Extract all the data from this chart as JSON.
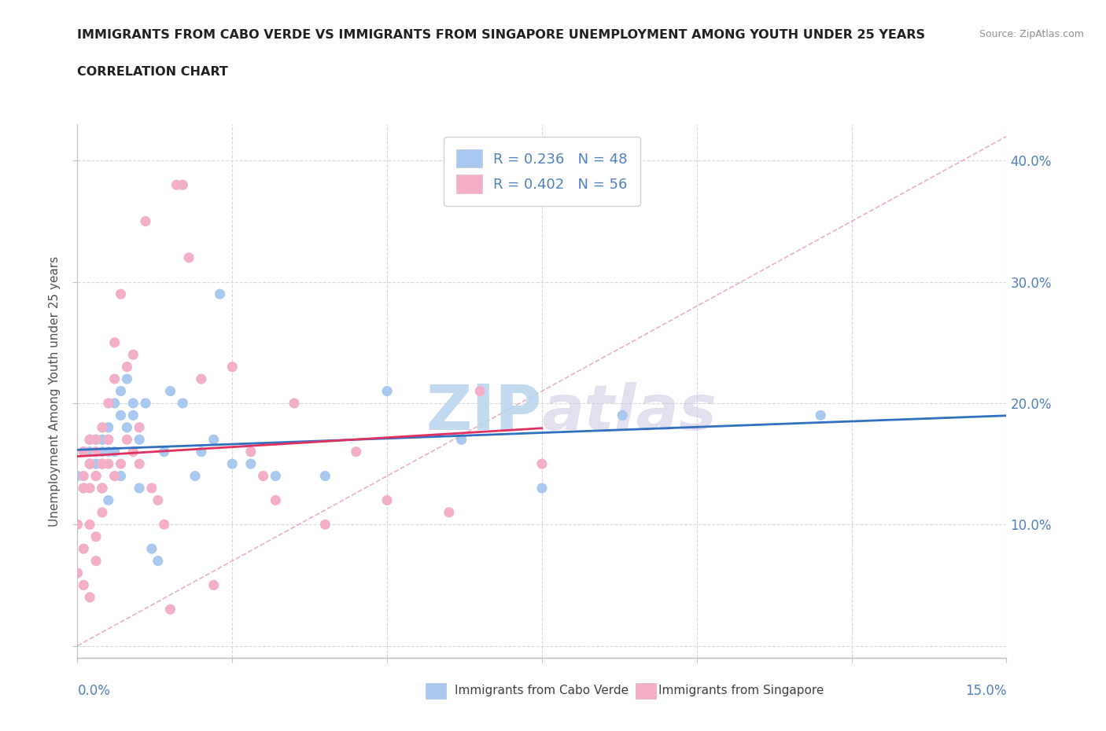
{
  "title_line1": "IMMIGRANTS FROM CABO VERDE VS IMMIGRANTS FROM SINGAPORE UNEMPLOYMENT AMONG YOUTH UNDER 25 YEARS",
  "title_line2": "CORRELATION CHART",
  "source": "Source: ZipAtlas.com",
  "ylabel": "Unemployment Among Youth under 25 years",
  "xlim": [
    0.0,
    0.15
  ],
  "ylim": [
    -0.01,
    0.43
  ],
  "x_ticks": [
    0.0,
    0.025,
    0.05,
    0.075,
    0.1,
    0.125,
    0.15
  ],
  "y_ticks": [
    0.0,
    0.1,
    0.2,
    0.3,
    0.4
  ],
  "y_tick_labels_right": [
    "",
    "10.0%",
    "20.0%",
    "30.0%",
    "40.0%"
  ],
  "cabo_verde_color": "#a8c8f0",
  "singapore_color": "#f4afc8",
  "cabo_verde_line_color": "#3070c0",
  "singapore_line_color": "#e03060",
  "ref_line_color": "#e0a0b0",
  "R_cabo": 0.236,
  "N_cabo": 48,
  "R_sing": 0.402,
  "N_sing": 56,
  "label_color": "#5080c0",
  "axis_color": "#c0c0c0",
  "cabo_verde_x": [
    0.0,
    0.001,
    0.001,
    0.002,
    0.002,
    0.002,
    0.003,
    0.003,
    0.003,
    0.003,
    0.004,
    0.004,
    0.004,
    0.004,
    0.005,
    0.005,
    0.005,
    0.005,
    0.006,
    0.006,
    0.007,
    0.007,
    0.007,
    0.008,
    0.008,
    0.009,
    0.009,
    0.01,
    0.01,
    0.011,
    0.012,
    0.013,
    0.014,
    0.015,
    0.017,
    0.019,
    0.02,
    0.022,
    0.023,
    0.025,
    0.028,
    0.032,
    0.04,
    0.05,
    0.062,
    0.075,
    0.088,
    0.12
  ],
  "cabo_verde_y": [
    0.14,
    0.13,
    0.16,
    0.15,
    0.17,
    0.16,
    0.14,
    0.15,
    0.17,
    0.16,
    0.16,
    0.17,
    0.13,
    0.15,
    0.16,
    0.18,
    0.12,
    0.17,
    0.2,
    0.16,
    0.21,
    0.19,
    0.14,
    0.22,
    0.18,
    0.2,
    0.19,
    0.17,
    0.13,
    0.2,
    0.08,
    0.07,
    0.16,
    0.21,
    0.2,
    0.14,
    0.16,
    0.17,
    0.29,
    0.15,
    0.15,
    0.14,
    0.14,
    0.21,
    0.17,
    0.13,
    0.19,
    0.19
  ],
  "singapore_x": [
    0.0,
    0.0,
    0.001,
    0.001,
    0.001,
    0.001,
    0.001,
    0.002,
    0.002,
    0.002,
    0.002,
    0.002,
    0.003,
    0.003,
    0.003,
    0.003,
    0.003,
    0.004,
    0.004,
    0.004,
    0.004,
    0.005,
    0.005,
    0.005,
    0.006,
    0.006,
    0.006,
    0.007,
    0.007,
    0.008,
    0.008,
    0.009,
    0.009,
    0.01,
    0.01,
    0.011,
    0.012,
    0.013,
    0.014,
    0.015,
    0.016,
    0.017,
    0.018,
    0.02,
    0.022,
    0.025,
    0.028,
    0.03,
    0.032,
    0.035,
    0.04,
    0.045,
    0.05,
    0.06,
    0.065,
    0.075
  ],
  "singapore_y": [
    0.1,
    0.06,
    0.14,
    0.13,
    0.16,
    0.08,
    0.05,
    0.17,
    0.15,
    0.04,
    0.13,
    0.1,
    0.16,
    0.14,
    0.17,
    0.09,
    0.07,
    0.18,
    0.15,
    0.13,
    0.11,
    0.2,
    0.17,
    0.15,
    0.25,
    0.22,
    0.14,
    0.29,
    0.15,
    0.23,
    0.17,
    0.24,
    0.16,
    0.18,
    0.15,
    0.35,
    0.13,
    0.12,
    0.1,
    0.03,
    0.38,
    0.38,
    0.32,
    0.22,
    0.05,
    0.23,
    0.16,
    0.14,
    0.12,
    0.2,
    0.1,
    0.16,
    0.12,
    0.11,
    0.21,
    0.15
  ]
}
